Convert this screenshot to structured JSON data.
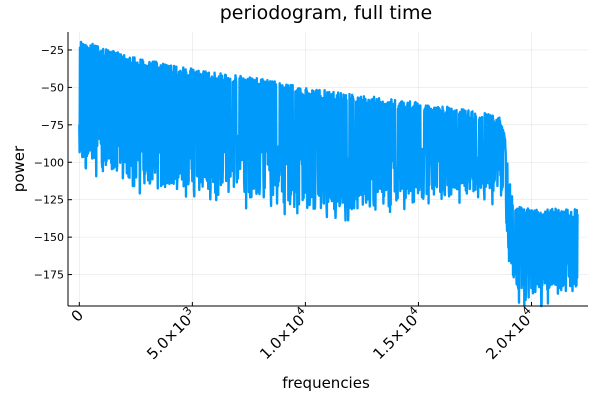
{
  "chart_data": {
    "type": "line",
    "title": "periodogram, full time",
    "xlabel": "frequencies",
    "ylabel": "power",
    "xlim": [
      -500,
      22500
    ],
    "ylim": [
      -196,
      -13
    ],
    "grid": true,
    "legend": "none",
    "color": "#009AFA",
    "x_ticks": [
      {
        "value": 0,
        "label": "0"
      },
      {
        "value": 5000,
        "label": "5.0×10",
        "exp": "3"
      },
      {
        "value": 10000,
        "label": "1.0×10",
        "exp": "4"
      },
      {
        "value": 15000,
        "label": "1.5×10",
        "exp": "4"
      },
      {
        "value": 20000,
        "label": "2.0×10",
        "exp": "4"
      }
    ],
    "y_ticks": [
      -25,
      -50,
      -75,
      -100,
      -125,
      -150,
      -175
    ],
    "series": [
      {
        "x": [
          0,
          2000,
          4000,
          6000,
          8000,
          10000,
          12000,
          14000,
          16000,
          18000,
          18600,
          18800,
          19000,
          19200,
          19500,
          20000,
          21000,
          22050
        ],
        "upper": [
          -18,
          -28,
          -35,
          -40,
          -44,
          -50,
          -54,
          -58,
          -62,
          -67,
          -70,
          -80,
          -110,
          -128,
          -130,
          -131,
          -131,
          -131
        ],
        "center": [
          -63,
          -68,
          -72,
          -75,
          -77,
          -80,
          -82,
          -85,
          -87,
          -90,
          -93,
          -105,
          -130,
          -155,
          -160,
          -160,
          -160,
          -160
        ],
        "lower": [
          -100,
          -112,
          -117,
          -120,
          -125,
          -130,
          -132,
          -128,
          -125,
          -120,
          -121,
          -130,
          -160,
          -187,
          -190,
          -191,
          -190,
          -188
        ]
      }
    ]
  }
}
